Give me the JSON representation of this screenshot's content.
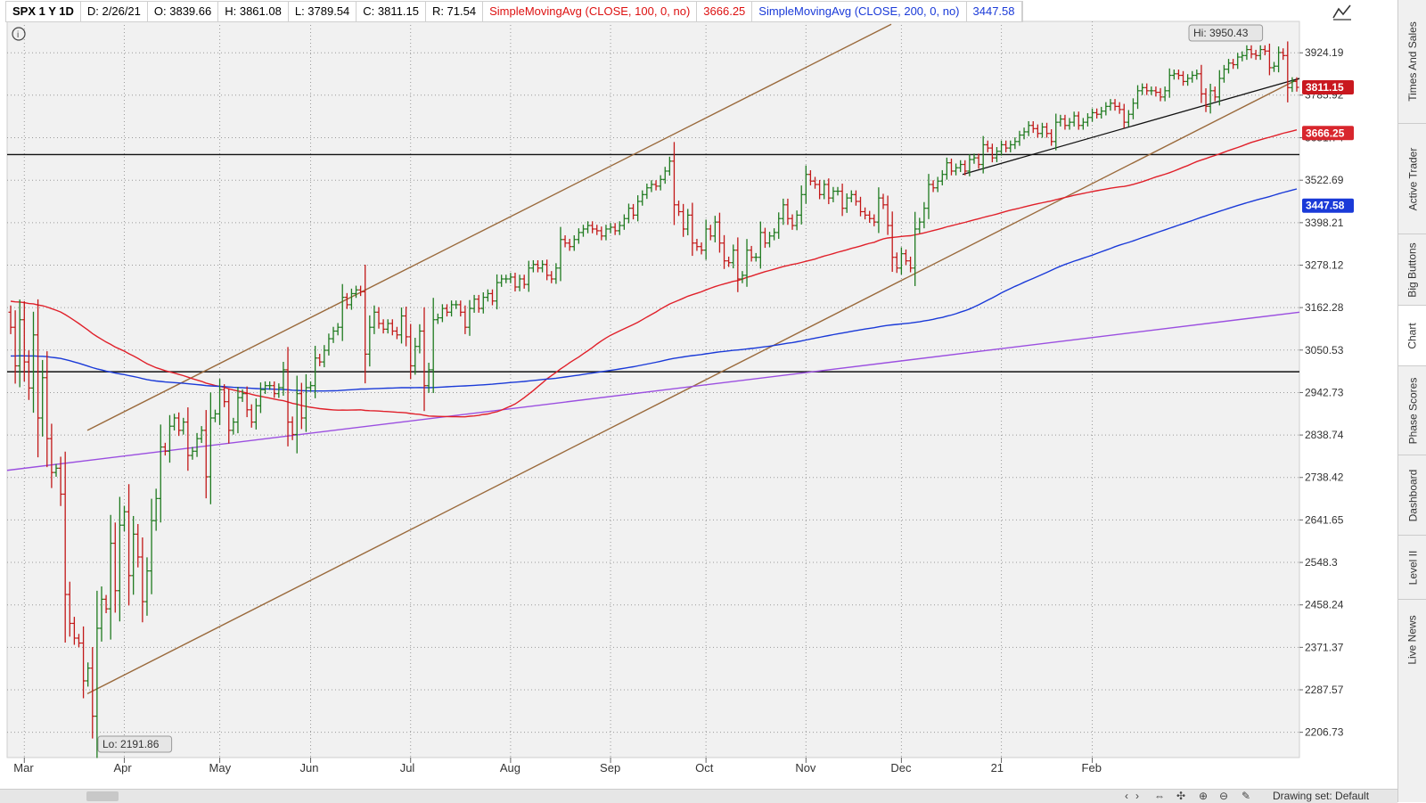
{
  "header": {
    "symbol": "SPX 1 Y 1D",
    "date": "D: 2/26/21",
    "open": "O: 3839.66",
    "high": "H: 3861.08",
    "low": "L: 3789.54",
    "close": "C: 3811.15",
    "range": "R: 71.54",
    "sma100_label": "SimpleMovingAvg (CLOSE, 100, 0, no)",
    "sma100_value": "3666.25",
    "sma200_label": "SimpleMovingAvg (CLOSE, 200, 0, no)",
    "sma200_value": "3447.58"
  },
  "chart_data": {
    "type": "ohlc-bar",
    "y_ticks": [
      "3924.19",
      "3785.92",
      "3651.74",
      "3522.69",
      "3398.21",
      "3278.12",
      "3162.28",
      "3050.53",
      "2942.73",
      "2838.74",
      "2738.42",
      "2641.65",
      "2548.3",
      "2458.24",
      "2371.37",
      "2287.57",
      "2206.73"
    ],
    "y_scale": "log",
    "x_ticks": [
      "Mar",
      "Apr",
      "May",
      "Jun",
      "Jul",
      "Aug",
      "Sep",
      "Oct",
      "Nov",
      "Dec",
      "21",
      "Feb"
    ],
    "price_labels": {
      "last": "3811.15",
      "sma100": "3666.25",
      "sma200": "3447.58"
    },
    "hi_label": "Hi: 3950.43",
    "lo_label": "Lo: 2191.86",
    "colors": {
      "up": "#1f7a1f",
      "down": "#c21818",
      "sma100": "#e0202a",
      "sma200": "#1a3ad8",
      "channel": "#9a6a3c",
      "trend": "#9b4fe0",
      "hline": "#111111"
    },
    "closes": [
      3110,
      3010,
      3130,
      3020,
      2954,
      3090,
      2880,
      2980,
      2830,
      2750,
      2760,
      2700,
      2480,
      2420,
      2390,
      2380,
      2305,
      2330,
      2237,
      2410,
      2470,
      2450,
      2590,
      2488,
      2630,
      2660,
      2520,
      2610,
      2560,
      2465,
      2530,
      2640,
      2690,
      2810,
      2800,
      2860,
      2880,
      2850,
      2870,
      2790,
      2800,
      2830,
      2850,
      2740,
      2880,
      2890,
      2950,
      2920,
      2850,
      2870,
      2930,
      2940,
      2900,
      2870,
      2910,
      2950,
      2960,
      2960,
      2940,
      2955,
      3000,
      2870,
      2840,
      2940,
      2880,
      2955,
      2960,
      3030,
      3020,
      3050,
      3080,
      3100,
      3110,
      3190,
      3170,
      3200,
      3210,
      3205,
      3040,
      3110,
      3150,
      3120,
      3105,
      3120,
      3100,
      3090,
      3140,
      3085,
      3010,
      3060,
      3100,
      2960,
      3000,
      3130,
      3135,
      3160,
      3150,
      3170,
      3170,
      3150,
      3110,
      3160,
      3185,
      3160,
      3190,
      3200,
      3180,
      3230,
      3240,
      3240,
      3245,
      3218,
      3240,
      3225,
      3270,
      3280,
      3270,
      3280,
      3250,
      3240,
      3270,
      3350,
      3340,
      3330,
      3350,
      3370,
      3380,
      3390,
      3380,
      3375,
      3360,
      3380,
      3385,
      3375,
      3390,
      3410,
      3440,
      3420,
      3460,
      3480,
      3500,
      3510,
      3505,
      3525,
      3550,
      3580,
      3450,
      3430,
      3380,
      3420,
      3340,
      3330,
      3320,
      3380,
      3360,
      3400,
      3340,
      3290,
      3285,
      3320,
      3240,
      3250,
      3320,
      3300,
      3300,
      3370,
      3340,
      3360,
      3370,
      3410,
      3450,
      3410,
      3390,
      3420,
      3480,
      3540,
      3520,
      3510,
      3480,
      3510,
      3470,
      3490,
      3490,
      3440,
      3470,
      3480,
      3460,
      3430,
      3420,
      3410,
      3400,
      3470,
      3450,
      3390,
      3300,
      3270,
      3310,
      3290,
      3270,
      3380,
      3400,
      3440,
      3510,
      3500,
      3520,
      3540,
      3575,
      3550,
      3560,
      3570,
      3550,
      3585,
      3590,
      3570,
      3630,
      3620,
      3590,
      3610,
      3630,
      3620,
      3630,
      3640,
      3660,
      3670,
      3690,
      3680,
      3665,
      3685,
      3665,
      3640,
      3700,
      3710,
      3690,
      3700,
      3720,
      3690,
      3700,
      3715,
      3730,
      3725,
      3735,
      3750,
      3760,
      3750,
      3740,
      3700,
      3725,
      3760,
      3800,
      3810,
      3800,
      3800,
      3795,
      3780,
      3800,
      3850,
      3855,
      3850,
      3830,
      3840,
      3850,
      3855,
      3790,
      3750,
      3800,
      3780,
      3840,
      3870,
      3890,
      3885,
      3910,
      3915,
      3935,
      3920,
      3915,
      3935,
      3930,
      3875,
      3880,
      3925,
      3915,
      3810,
      3830,
      3811
    ]
  },
  "tabs": [
    "Times And Sales",
    "Active Trader",
    "Big Buttons",
    "Chart",
    "Phase Scores",
    "Dashboard",
    "Level II",
    "Live News"
  ],
  "bottom": {
    "drawing_set": "Drawing set: Default"
  }
}
